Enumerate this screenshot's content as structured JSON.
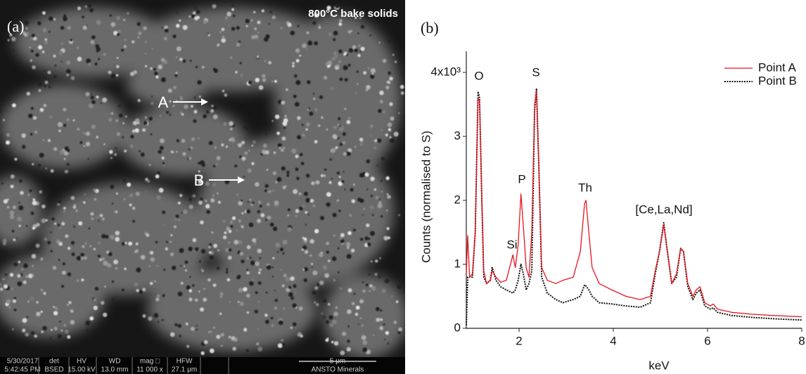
{
  "panel_a": {
    "label": "(a)",
    "title": "800°C bake solids",
    "points": [
      "A",
      "B"
    ],
    "info_bar": [
      "5/30/2017",
      "5:42:45 PM",
      "det",
      "BSED",
      "HV",
      "15.00 kV",
      "WD",
      "13.0 mm",
      "mag □",
      "11 000 x",
      "HFW",
      "27.1 μm",
      "5 μm",
      "ANSTO Minerals"
    ]
  },
  "chart_data": {
    "type": "line",
    "panel_label": "(b)",
    "x_label": "keV",
    "y_label": "Counts (normalised to S)",
    "xlim": [
      0.88,
      8
    ],
    "xticks": [
      2,
      4,
      6,
      8
    ],
    "ylim": [
      0,
      4.33
    ],
    "yticks": [
      0,
      1,
      2,
      3,
      {
        "value": 4,
        "label": "4x10³"
      }
    ],
    "legend": "top-right",
    "annotations": [
      "O",
      "S",
      "P",
      "Si",
      "Th",
      "[Ce,La,Nd]"
    ],
    "x": [
      0.88,
      0.91,
      0.95,
      1.01,
      1.07,
      1.13,
      1.16,
      1.21,
      1.25,
      1.31,
      1.39,
      1.43,
      1.51,
      1.61,
      1.73,
      1.87,
      1.92,
      1.98,
      2.04,
      2.09,
      2.15,
      2.21,
      2.27,
      2.33,
      2.37,
      2.42,
      2.48,
      2.6,
      2.78,
      2.93,
      3.15,
      3.3,
      3.39,
      3.42,
      3.48,
      3.55,
      3.7,
      3.97,
      4.27,
      4.57,
      4.79,
      4.89,
      4.98,
      5.07,
      5.13,
      5.24,
      5.34,
      5.43,
      5.49,
      5.58,
      5.69,
      5.76,
      5.84,
      5.94,
      6.06,
      6.12,
      6.21,
      6.51,
      6.95,
      7.4,
      8.0
    ],
    "series": [
      {
        "name": "Point A",
        "color": "#e8141c",
        "line_style": "solid",
        "values": [
          0.85,
          1.45,
          0.8,
          0.85,
          1.5,
          3.6,
          3.55,
          2.0,
          0.9,
          0.7,
          0.75,
          0.9,
          0.8,
          0.72,
          0.75,
          1.15,
          0.95,
          1.3,
          2.1,
          1.6,
          0.95,
          0.8,
          1.5,
          3.5,
          3.7,
          2.5,
          0.95,
          0.75,
          0.7,
          0.75,
          0.8,
          1.2,
          1.95,
          2.0,
          1.5,
          0.95,
          0.7,
          0.6,
          0.5,
          0.45,
          0.5,
          0.9,
          1.2,
          1.62,
          1.3,
          0.7,
          0.85,
          1.25,
          1.2,
          0.7,
          0.5,
          0.6,
          0.65,
          0.4,
          0.35,
          0.38,
          0.3,
          0.25,
          0.22,
          0.2,
          0.18
        ]
      },
      {
        "name": "Point B",
        "color": "#111111",
        "line_style": "dotted",
        "values": [
          0.05,
          0.8,
          0.8,
          0.8,
          1.5,
          3.7,
          3.6,
          2.0,
          0.8,
          0.7,
          0.75,
          0.95,
          0.75,
          0.65,
          0.6,
          0.55,
          0.6,
          0.75,
          1.0,
          0.85,
          0.6,
          0.7,
          0.9,
          3.4,
          3.75,
          2.5,
          0.8,
          0.55,
          0.45,
          0.4,
          0.45,
          0.5,
          0.68,
          0.66,
          0.6,
          0.5,
          0.4,
          0.38,
          0.35,
          0.33,
          0.4,
          0.85,
          1.2,
          1.65,
          1.3,
          0.7,
          0.8,
          1.25,
          1.2,
          0.65,
          0.45,
          0.55,
          0.6,
          0.35,
          0.3,
          0.32,
          0.25,
          0.2,
          0.17,
          0.15,
          0.13
        ]
      }
    ]
  }
}
